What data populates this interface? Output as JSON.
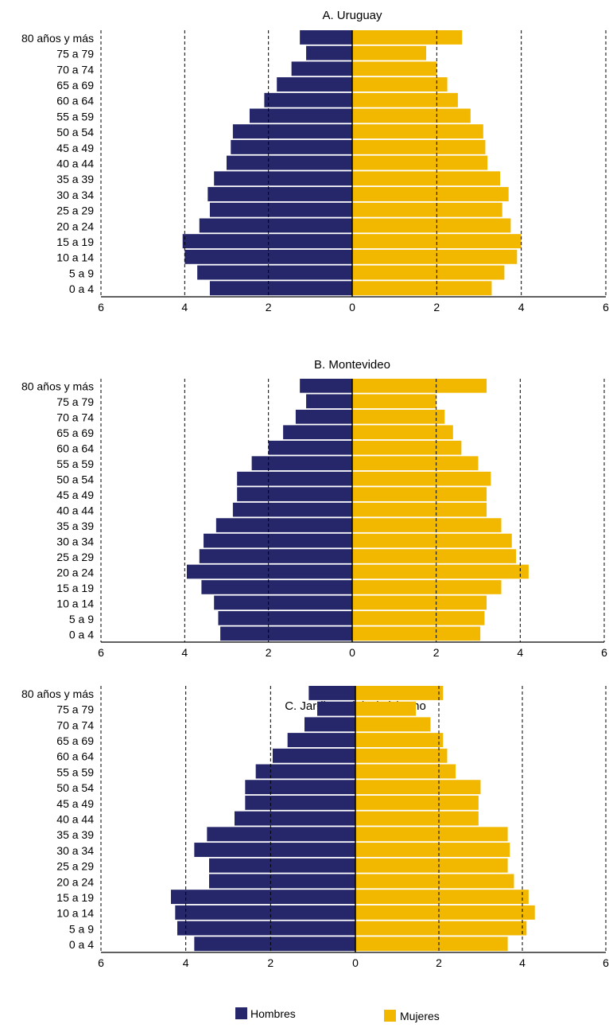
{
  "colors": {
    "hombres": "#26276a",
    "mujeres": "#f2b800"
  },
  "legend": [
    {
      "label": "Hombres",
      "color": "#26276a"
    },
    {
      "label": "Mujeres",
      "color": "#f2b800"
    }
  ],
  "chart_data": [
    {
      "type": "bar",
      "orientation": "horizontal-population-pyramid",
      "title": "A. Uruguay",
      "categories": [
        "80 años y más",
        "75 a 79",
        "70 a 74",
        "65 a 69",
        "60 a 64",
        "55 a 59",
        "50 a 54",
        "45 a 49",
        "40 a 44",
        "35 a 39",
        "30 a 34",
        "25 a 29",
        "20 a 24",
        "15 a 19",
        "10 a 14",
        "5 a 9",
        "0 a 4"
      ],
      "series": [
        {
          "name": "Hombres",
          "values": [
            1.25,
            1.1,
            1.45,
            1.8,
            2.1,
            2.45,
            2.85,
            2.9,
            3.0,
            3.3,
            3.45,
            3.4,
            3.65,
            4.05,
            4.0,
            3.7,
            3.4
          ]
        },
        {
          "name": "Mujeres",
          "values": [
            2.6,
            1.75,
            2.0,
            2.25,
            2.5,
            2.8,
            3.1,
            3.15,
            3.2,
            3.5,
            3.7,
            3.55,
            3.75,
            4.0,
            3.9,
            3.6,
            3.3
          ]
        }
      ],
      "xlim": [
        -6,
        6
      ],
      "xticks": [
        "6",
        "4",
        "2",
        "0",
        "2",
        "4",
        "6"
      ],
      "grid": "dashed vertical lines at 2 and 4"
    },
    {
      "type": "bar",
      "orientation": "horizontal-population-pyramid",
      "title": "B. Montevideo",
      "categories": [
        "80 años y más",
        "75 a 79",
        "70 a 74",
        "65 a 69",
        "60 a 64",
        "55 a 59",
        "50 a 54",
        "45 a 49",
        "40 a 44",
        "35 a 39",
        "30 a 34",
        "25 a 29",
        "20 a 24",
        "15 a 19",
        "10 a 14",
        "5 a 9",
        "0 a 4"
      ],
      "series": [
        {
          "name": "Hombres",
          "values": [
            1.25,
            1.1,
            1.35,
            1.65,
            2.0,
            2.4,
            2.75,
            2.75,
            2.85,
            3.25,
            3.55,
            3.65,
            3.95,
            3.6,
            3.3,
            3.2,
            3.15
          ]
        },
        {
          "name": "Mujeres",
          "values": [
            3.2,
            2.0,
            2.2,
            2.4,
            2.6,
            3.0,
            3.3,
            3.2,
            3.2,
            3.55,
            3.8,
            3.9,
            4.2,
            3.55,
            3.2,
            3.15,
            3.05
          ]
        }
      ],
      "xlim": [
        -6,
        6
      ],
      "xticks": [
        "6",
        "4",
        "2",
        "0",
        "2",
        "4",
        "6"
      ],
      "grid": "dashed vertical lines at 2 and 4"
    },
    {
      "type": "bar",
      "orientation": "horizontal-population-pyramid",
      "title": "C. Jardines del Hipódromo",
      "categories": [
        "80 años y más",
        "75 a 79",
        "70 a 74",
        "65 a 69",
        "60 a 64",
        "55 a 59",
        "50 a 54",
        "45 a 49",
        "40 a 44",
        "35 a 39",
        "30 a 34",
        "25 a 29",
        "20 a 24",
        "15 a 19",
        "10 a 14",
        "5 a 9",
        "0 a 4"
      ],
      "series": [
        {
          "name": "Hombres",
          "values": [
            1.1,
            0.9,
            1.2,
            1.6,
            1.95,
            2.35,
            2.6,
            2.6,
            2.85,
            3.5,
            3.8,
            3.45,
            3.45,
            4.35,
            4.25,
            4.2,
            3.8
          ]
        },
        {
          "name": "Mujeres",
          "values": [
            2.1,
            1.45,
            1.8,
            2.1,
            2.2,
            2.4,
            3.0,
            2.95,
            2.95,
            3.65,
            3.7,
            3.65,
            3.8,
            4.15,
            4.3,
            4.1,
            3.65
          ]
        }
      ],
      "xlim": [
        -6,
        6
      ],
      "xticks": [
        "6",
        "4",
        "2",
        "0",
        "2",
        "4",
        "6"
      ],
      "grid": "dashed vertical lines at 2 and 4"
    }
  ]
}
